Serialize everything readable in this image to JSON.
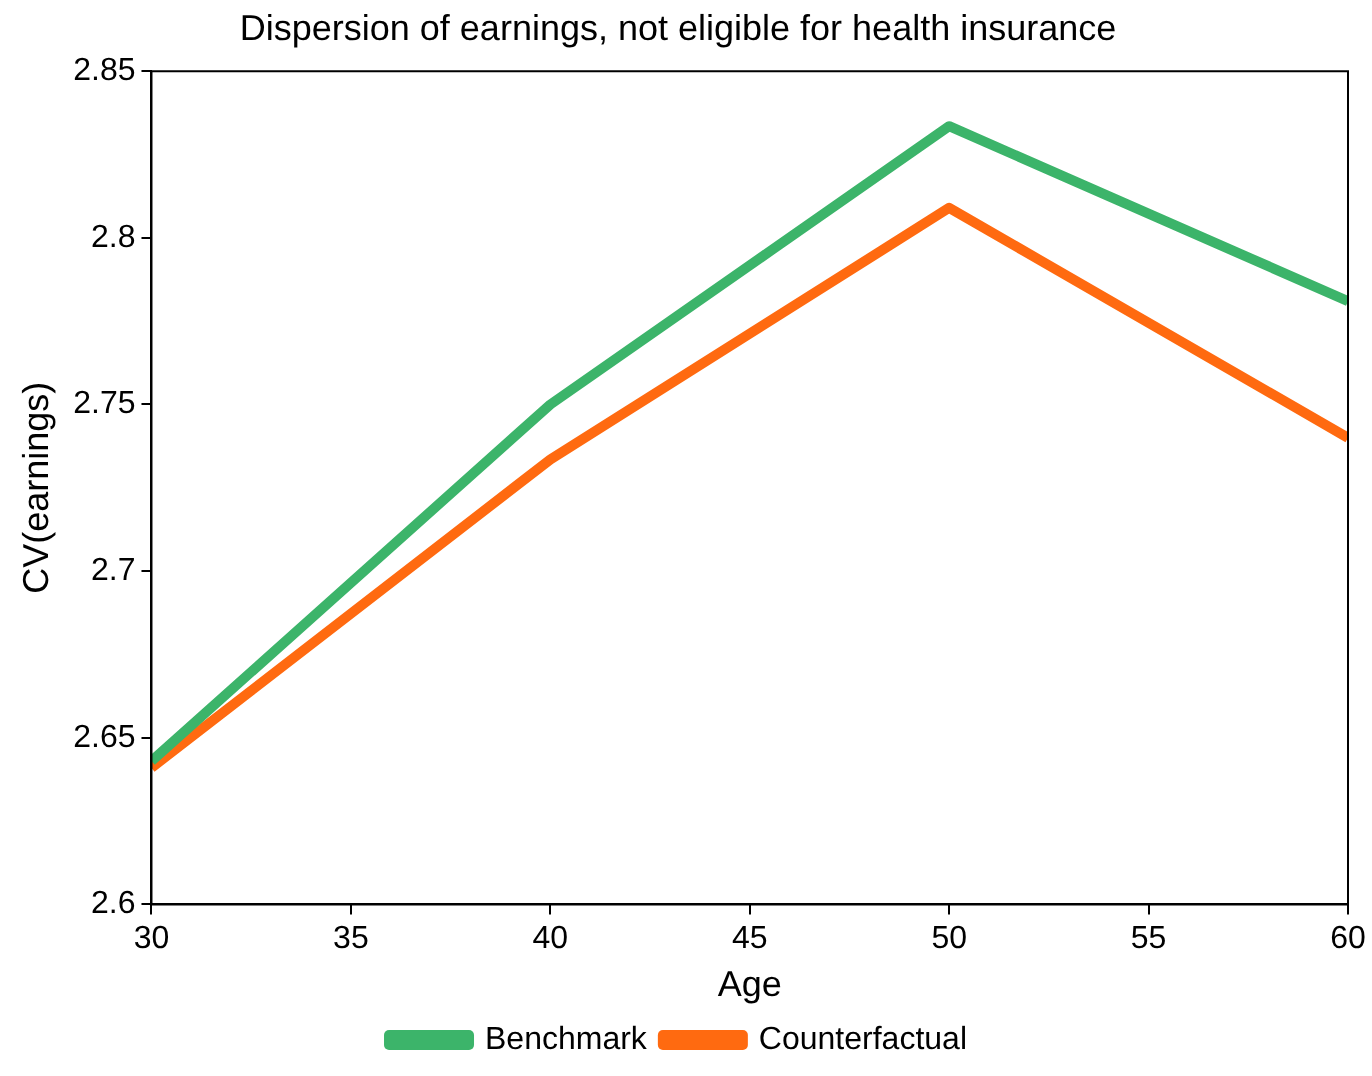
{
  "chart_data": {
    "type": "line",
    "title": "Dispersion of earnings, not eligible for health insurance",
    "xlabel": "Age",
    "ylabel": "CV(earnings)",
    "x": [
      30,
      40,
      50,
      60
    ],
    "series": [
      {
        "name": "Benchmark",
        "color": "#3cb46a",
        "values": [
          2.643,
          2.75,
          2.8335,
          2.781
        ]
      },
      {
        "name": "Counterfactual",
        "color": "#ff6a10",
        "values": [
          2.641,
          2.7335,
          2.809,
          2.74
        ]
      }
    ],
    "xlim": [
      30,
      60
    ],
    "xticks": [
      30,
      35,
      40,
      45,
      50,
      55,
      60
    ],
    "ylim": [
      2.6,
      2.85
    ],
    "yticks": [
      2.6,
      2.65,
      2.7,
      2.75,
      2.8,
      2.85
    ],
    "grid": false,
    "legend": "bottom",
    "marker": "none",
    "line_style": "solid"
  }
}
